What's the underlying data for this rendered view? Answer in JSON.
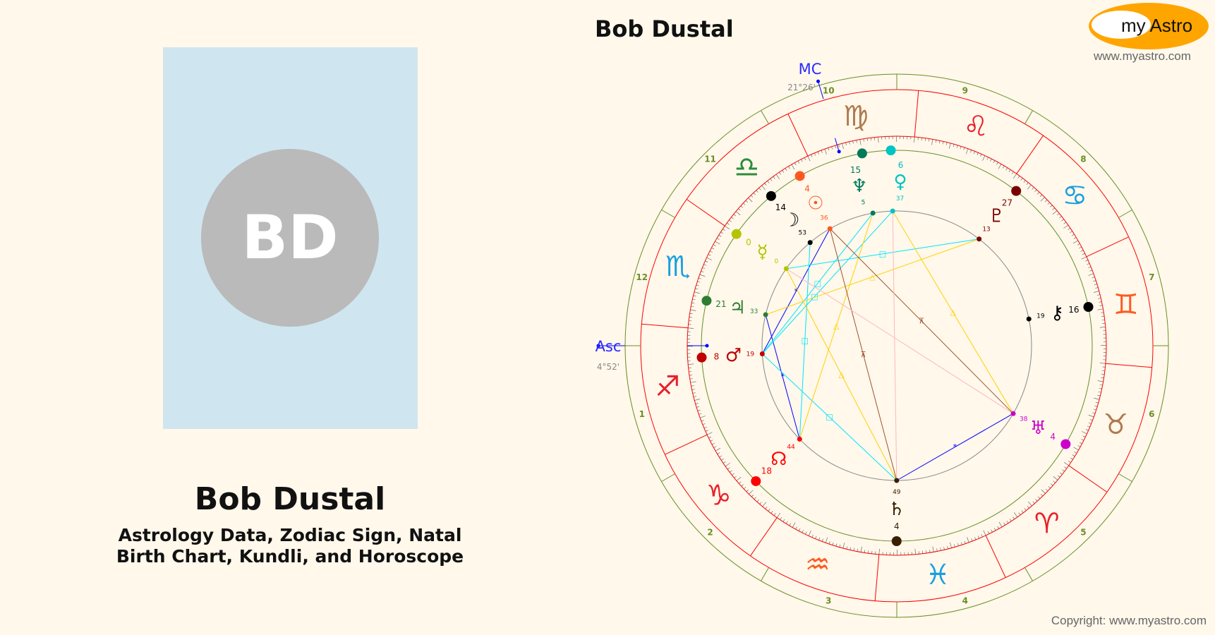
{
  "profile": {
    "initials": "BD",
    "name": "Bob Dustal",
    "subtitle_line1": "Astrology Data, Zodiac Sign, Natal",
    "subtitle_line2": "Birth Chart, Kundli, and Horoscope"
  },
  "header": {
    "chart_title": "Bob Dustal",
    "logo_text": "my Astro",
    "logo_url": "www.myastro.com",
    "copyright": "Copyright: www.myastro.com",
    "logo_color": "#ffa500"
  },
  "chart_data": {
    "type": "natal-chart-wheel",
    "ascendant": {
      "label": "Asc",
      "sign": "Sagittarius",
      "deg": 4,
      "min": 52,
      "text": "4°52'",
      "color": "#0000ff"
    },
    "midheaven": {
      "label": "MC",
      "sign": "Virgo",
      "deg": 21,
      "min": 26,
      "text": "21°26'",
      "color": "#0000ff"
    },
    "signs": [
      {
        "name": "Aries",
        "glyph": "♈",
        "color": "#e8202a"
      },
      {
        "name": "Taurus",
        "glyph": "♉",
        "color": "#b07a50"
      },
      {
        "name": "Gemini",
        "glyph": "♊",
        "color": "#ff5a1f"
      },
      {
        "name": "Cancer",
        "glyph": "♋",
        "color": "#1a9ee0"
      },
      {
        "name": "Leo",
        "glyph": "♌",
        "color": "#e8202a"
      },
      {
        "name": "Virgo",
        "glyph": "♍",
        "color": "#b07a50"
      },
      {
        "name": "Libra",
        "glyph": "♎",
        "color": "#2e8b3a"
      },
      {
        "name": "Scorpio",
        "glyph": "♏",
        "color": "#1a9ee0"
      },
      {
        "name": "Sagittarius",
        "glyph": "♐",
        "color": "#e8202a"
      },
      {
        "name": "Capricorn",
        "glyph": "♑",
        "color": "#e8202a"
      },
      {
        "name": "Aquarius",
        "glyph": "♒",
        "color": "#ff5a1f"
      },
      {
        "name": "Pisces",
        "glyph": "♓",
        "color": "#1a9ee0"
      }
    ],
    "houses": [
      "1",
      "2",
      "3",
      "4",
      "5",
      "6",
      "7",
      "8",
      "9",
      "10",
      "11",
      "12"
    ],
    "planets": [
      {
        "name": "Sun",
        "glyph": "☉",
        "sign": "Libra",
        "deg": "4",
        "min": "36",
        "color": "#ff5722"
      },
      {
        "name": "Moon",
        "glyph": "☽",
        "sign": "Libra",
        "deg": "14",
        "min": "53",
        "color": "#000000"
      },
      {
        "name": "Mercury",
        "glyph": "☿",
        "sign": "Scorpio",
        "deg": "0",
        "min": "0",
        "color": "#b5c400"
      },
      {
        "name": "Venus",
        "glyph": "♀",
        "sign": "Virgo",
        "deg": "6",
        "min": "37",
        "color": "#00c4c4"
      },
      {
        "name": "Mars",
        "glyph": "♂",
        "sign": "Sagittarius",
        "deg": "8",
        "min": "19",
        "color": "#c00000"
      },
      {
        "name": "Jupiter",
        "glyph": "♃",
        "sign": "Scorpio",
        "deg": "21",
        "min": "33",
        "color": "#2e7d32"
      },
      {
        "name": "Saturn",
        "glyph": "♄",
        "sign": "Pisces",
        "deg": "4",
        "min": "49",
        "color": "#3a1e00"
      },
      {
        "name": "Uranus",
        "glyph": "♅",
        "sign": "Taurus",
        "deg": "4",
        "min": "38",
        "color": "#cc00cc"
      },
      {
        "name": "Neptune",
        "glyph": "♆",
        "sign": "Virgo",
        "deg": "15",
        "min": "5",
        "color": "#007a5a"
      },
      {
        "name": "Pluto",
        "glyph": "♇",
        "sign": "Cancer",
        "deg": "27",
        "min": "13",
        "color": "#7a0000"
      },
      {
        "name": "Chiron",
        "glyph": "⚷",
        "sign": "Gemini",
        "deg": "16",
        "min": "19",
        "color": "#000000"
      },
      {
        "name": "North Node",
        "glyph": "☊",
        "sign": "Capricorn",
        "deg": "18",
        "min": "44",
        "color": "#ff0000"
      }
    ],
    "aspects": [
      {
        "from": "Sun",
        "to": "Mars",
        "type": "sextile",
        "color": "#0000ff",
        "symbol": "*"
      },
      {
        "from": "Jupiter",
        "to": "North Node",
        "type": "sextile",
        "color": "#0000ff",
        "symbol": "*"
      },
      {
        "from": "Saturn",
        "to": "Uranus",
        "type": "sextile",
        "color": "#0000ff",
        "symbol": "*"
      },
      {
        "from": "Mercury",
        "to": "Pluto",
        "type": "square",
        "color": "#00e5ff",
        "symbol": "□"
      },
      {
        "from": "Moon",
        "to": "North Node",
        "type": "square",
        "color": "#00e5ff",
        "symbol": "□"
      },
      {
        "from": "Mars",
        "to": "Neptune",
        "type": "square",
        "color": "#00e5ff",
        "symbol": "□"
      },
      {
        "from": "Mars",
        "to": "Venus",
        "type": "square",
        "color": "#00e5ff",
        "symbol": "□"
      },
      {
        "from": "Mars",
        "to": "Saturn",
        "type": "square",
        "color": "#00e5ff",
        "symbol": "□"
      },
      {
        "from": "Jupiter",
        "to": "Pluto",
        "type": "trine",
        "color": "#ffd000",
        "symbol": "△"
      },
      {
        "from": "Venus",
        "to": "Uranus",
        "type": "trine",
        "color": "#ffd000",
        "symbol": "△"
      },
      {
        "from": "Neptune",
        "to": "North Node",
        "type": "trine",
        "color": "#ffd000",
        "symbol": "△"
      },
      {
        "from": "Mercury",
        "to": "Saturn",
        "type": "trine",
        "color": "#ffd000",
        "symbol": "△"
      },
      {
        "from": "Sun",
        "to": "Uranus",
        "type": "quincunx",
        "color": "#a0522d",
        "symbol": "⊼"
      },
      {
        "from": "Sun",
        "to": "Saturn",
        "type": "quincunx",
        "color": "#a0522d",
        "symbol": "⊼"
      },
      {
        "from": "Venus",
        "to": "Saturn",
        "type": "opposition",
        "color": "#ffb6c1",
        "symbol": ""
      },
      {
        "from": "Mercury",
        "to": "Uranus",
        "type": "opposition",
        "color": "#ffb6c1",
        "symbol": ""
      }
    ],
    "ring_colors": {
      "outer": "#6b8e23",
      "zodiac": "#ff0000",
      "inner": "#6b8e23",
      "aspect_circle": "#888888"
    }
  }
}
